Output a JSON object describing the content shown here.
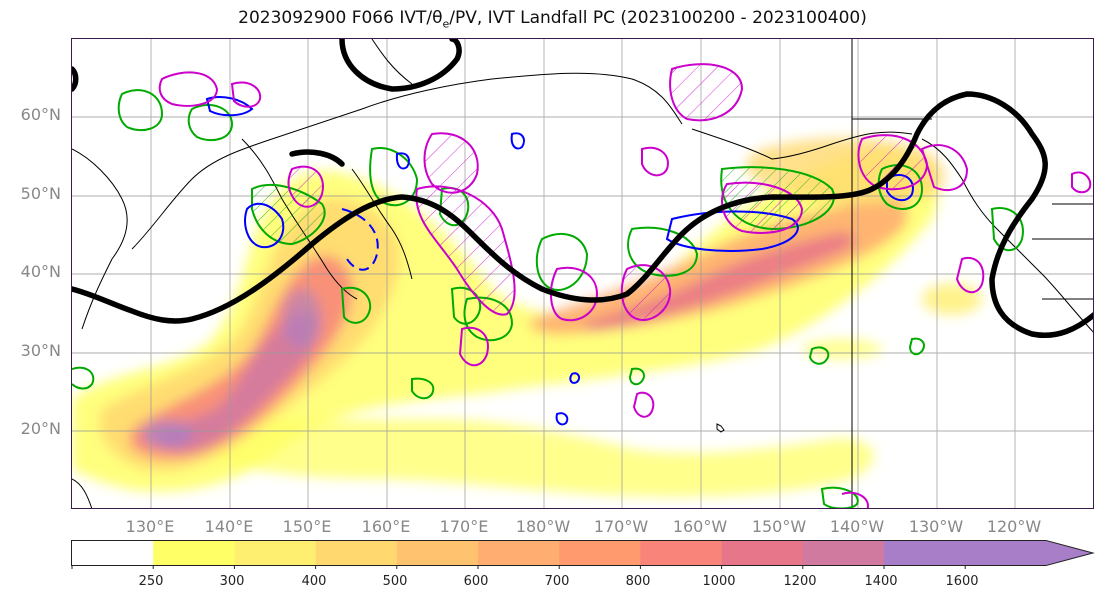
{
  "title": {
    "prefix": "2023092900 F066 IVT/",
    "theta": "θ",
    "theta_sub": "e",
    "suffix": "/PV, IVT Landfall PC (2023100200 - 2023100400)"
  },
  "map": {
    "latitude_labels": [
      "60°N",
      "50°N",
      "40°N",
      "30°N",
      "20°N"
    ],
    "longitude_labels": [
      "130°E",
      "140°E",
      "150°E",
      "160°E",
      "170°E",
      "180°W",
      "170°W",
      "160°W",
      "150°W",
      "140°W",
      "130°W",
      "120°W"
    ],
    "colors": {
      "landfall_pc_contour": "#000000",
      "thetae_contour_positive": "#00aa00",
      "thetae_contour_negative": "#0000ff",
      "pv_contour": "#cc00cc",
      "coastline": "#000000",
      "gridline": "#999999"
    }
  },
  "colorbar": {
    "tick_labels": [
      "250",
      "300",
      "400",
      "500",
      "600",
      "700",
      "800",
      "1000",
      "1200",
      "1400",
      "1600"
    ],
    "colors": [
      "#ffffff",
      "#ffff66",
      "#ffef70",
      "#ffd970",
      "#ffc370",
      "#ffad70",
      "#ff9a6f",
      "#f8847a",
      "#e8768a",
      "#d07aa0",
      "#a87ec8"
    ],
    "extend": "max"
  }
}
